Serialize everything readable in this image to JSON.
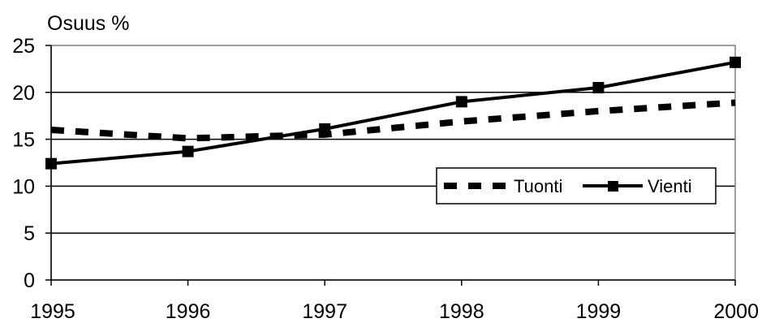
{
  "chart_data": {
    "type": "line",
    "ylabel": "Osuus %",
    "xlabel": "",
    "categories": [
      "1995",
      "1996",
      "1997",
      "1998",
      "1999",
      "2000"
    ],
    "ylim": [
      0,
      25
    ],
    "yticks": [
      "0",
      "5",
      "10",
      "15",
      "20",
      "25"
    ],
    "grid": "horizontal",
    "legend_position": "right",
    "series": [
      {
        "name": "Tuonti",
        "values": [
          16.0,
          15.1,
          15.5,
          16.9,
          18.0,
          18.9
        ],
        "style": "dashed",
        "marker": "none",
        "color": "#000000"
      },
      {
        "name": "Vienti",
        "values": [
          12.4,
          13.7,
          16.1,
          19.0,
          20.5,
          23.2
        ],
        "style": "solid",
        "marker": "square",
        "color": "#000000"
      }
    ]
  }
}
